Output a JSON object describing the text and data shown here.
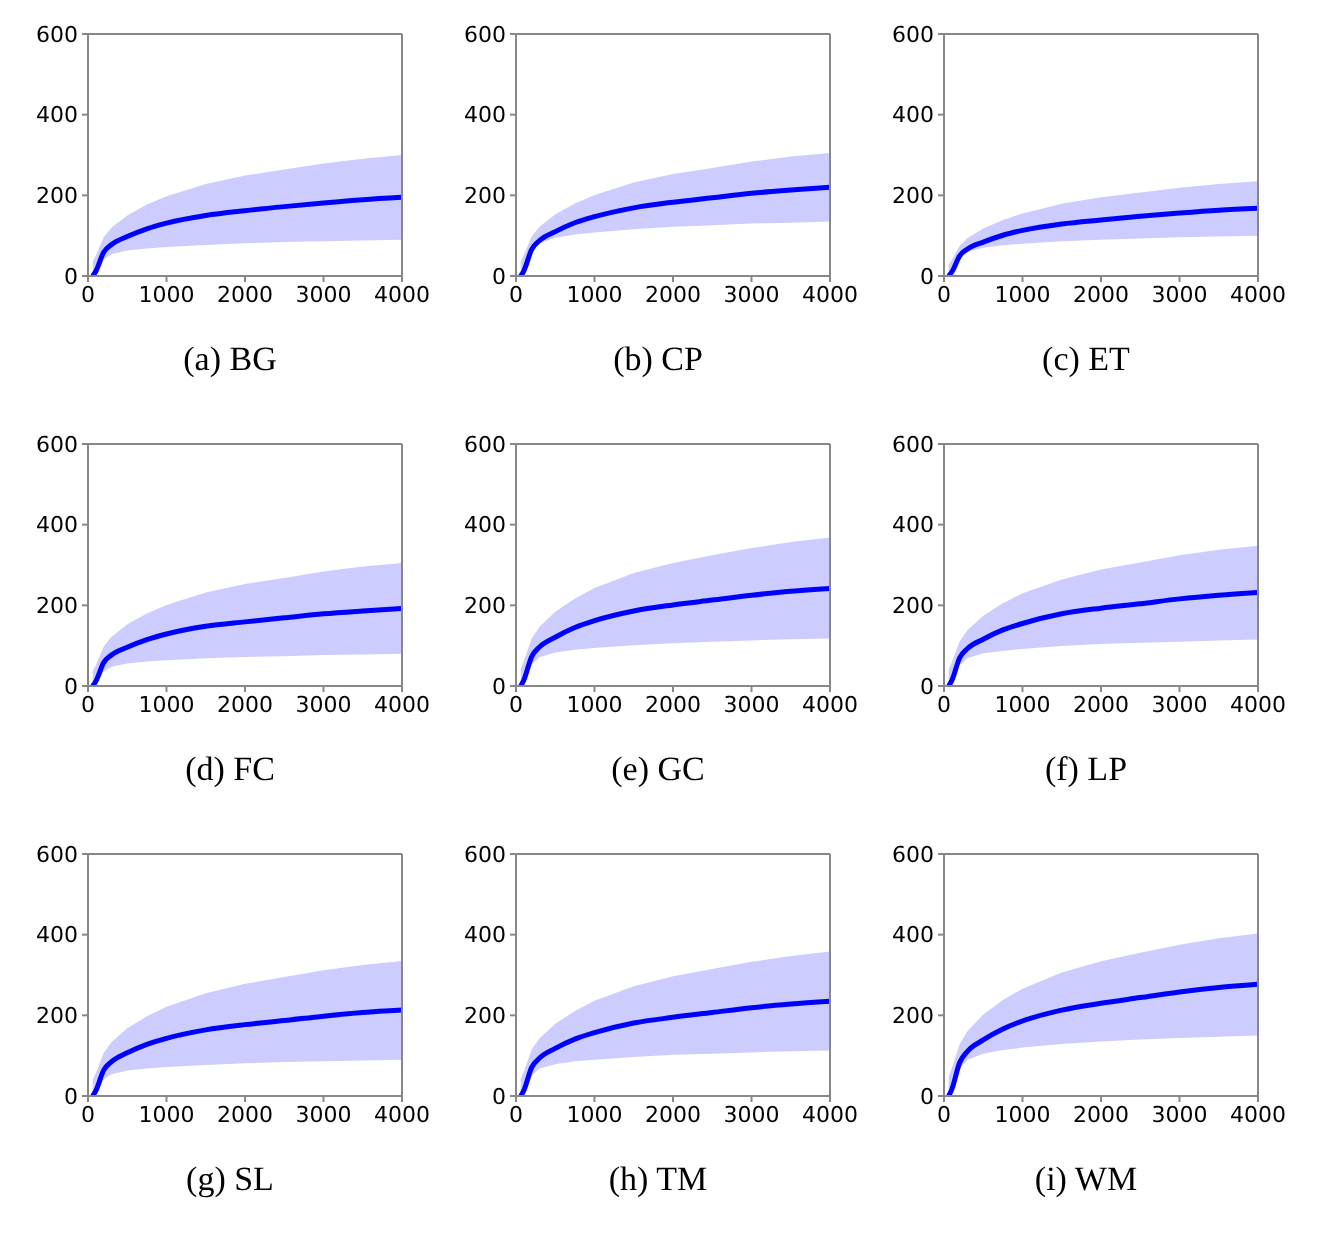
{
  "chart_data": [
    {
      "type": "line",
      "title": "(a) BG",
      "x": [
        60,
        100,
        200,
        300,
        500,
        750,
        1000,
        1500,
        2000,
        2500,
        3000,
        3500,
        4000
      ],
      "xlim": [
        0,
        4000
      ],
      "xticks": [
        0,
        1000,
        2000,
        3000,
        4000
      ],
      "ylim": [
        0,
        600
      ],
      "yticks": [
        0,
        200,
        400,
        600
      ],
      "grid": false,
      "legend": false,
      "series": [
        {
          "color": "#0000ff",
          "values": [
            0,
            12,
            59,
            78,
            98,
            117,
            131,
            150,
            162,
            172,
            181,
            189,
            195
          ],
          "upper": [
            36,
            51,
            96,
            120,
            150,
            177,
            198,
            228,
            249,
            264,
            279,
            291,
            300
          ],
          "lower": [
            0,
            9,
            41,
            54,
            63,
            68,
            72,
            77,
            81,
            84,
            86,
            88,
            90
          ]
        }
      ]
    },
    {
      "type": "line",
      "title": "(b) CP",
      "x": [
        60,
        100,
        200,
        300,
        500,
        750,
        1000,
        1500,
        2000,
        2500,
        3000,
        3500,
        4000
      ],
      "xlim": [
        0,
        4000
      ],
      "xticks": [
        0,
        1000,
        2000,
        3000,
        4000
      ],
      "ylim": [
        0,
        600
      ],
      "yticks": [
        0,
        200,
        400,
        600
      ],
      "grid": false,
      "legend": false,
      "series": [
        {
          "color": "#0000ff",
          "values": [
            0,
            13,
            66,
            88,
            110,
            132,
            147,
            169,
            183,
            194,
            205,
            213,
            220
          ],
          "upper": [
            37,
            52,
            98,
            122,
            153,
            180,
            201,
            232,
            253,
            268,
            284,
            296,
            305
          ],
          "lower": [
            0,
            14,
            61,
            81,
            95,
            103,
            108,
            116,
            122,
            126,
            130,
            132,
            135
          ]
        }
      ]
    },
    {
      "type": "line",
      "title": "(c) ET",
      "x": [
        60,
        100,
        200,
        300,
        500,
        750,
        1000,
        1500,
        2000,
        2500,
        3000,
        3500,
        4000
      ],
      "xlim": [
        0,
        4000
      ],
      "xticks": [
        0,
        1000,
        2000,
        3000,
        4000
      ],
      "ylim": [
        0,
        600
      ],
      "yticks": [
        0,
        200,
        400,
        600
      ],
      "grid": false,
      "legend": false,
      "series": [
        {
          "color": "#0000ff",
          "values": [
            0,
            10,
            50,
            67,
            84,
            101,
            113,
            129,
            139,
            148,
            156,
            163,
            168
          ],
          "upper": [
            28,
            40,
            75,
            94,
            118,
            139,
            155,
            179,
            195,
            207,
            219,
            228,
            235
          ],
          "lower": [
            0,
            10,
            45,
            60,
            70,
            76,
            80,
            86,
            90,
            93,
            96,
            98,
            100
          ]
        }
      ]
    },
    {
      "type": "line",
      "title": "(d) FC",
      "x": [
        60,
        100,
        200,
        300,
        500,
        750,
        1000,
        1500,
        2000,
        2500,
        3000,
        3500,
        4000
      ],
      "xlim": [
        0,
        4000
      ],
      "xticks": [
        0,
        1000,
        2000,
        3000,
        4000
      ],
      "ylim": [
        0,
        600
      ],
      "yticks": [
        0,
        200,
        400,
        600
      ],
      "grid": false,
      "legend": false,
      "series": [
        {
          "color": "#0000ff",
          "values": [
            0,
            12,
            58,
            77,
            96,
            115,
            129,
            148,
            159,
            169,
            179,
            186,
            192
          ],
          "upper": [
            37,
            52,
            98,
            122,
            153,
            180,
            201,
            232,
            253,
            268,
            284,
            296,
            305
          ],
          "lower": [
            0,
            8,
            36,
            48,
            56,
            61,
            64,
            69,
            72,
            74,
            77,
            78,
            80
          ]
        }
      ]
    },
    {
      "type": "line",
      "title": "(e) GC",
      "x": [
        60,
        100,
        200,
        300,
        500,
        750,
        1000,
        1500,
        2000,
        2500,
        3000,
        3500,
        4000
      ],
      "xlim": [
        0,
        4000
      ],
      "xticks": [
        0,
        1000,
        2000,
        3000,
        4000
      ],
      "ylim": [
        0,
        600
      ],
      "yticks": [
        0,
        200,
        400,
        600
      ],
      "grid": false,
      "legend": false,
      "series": [
        {
          "color": "#0000ff",
          "values": [
            0,
            15,
            73,
            97,
            121,
            145,
            162,
            186,
            201,
            213,
            225,
            235,
            242
          ],
          "upper": [
            44,
            63,
            118,
            147,
            184,
            217,
            243,
            280,
            305,
            324,
            342,
            357,
            368
          ],
          "lower": [
            0,
            12,
            53,
            71,
            83,
            90,
            94,
            101,
            106,
            110,
            113,
            116,
            118
          ]
        }
      ]
    },
    {
      "type": "line",
      "title": "(f) LP",
      "x": [
        60,
        100,
        200,
        300,
        500,
        750,
        1000,
        1500,
        2000,
        2500,
        3000,
        3500,
        4000
      ],
      "xlim": [
        0,
        4000
      ],
      "xticks": [
        0,
        1000,
        2000,
        3000,
        4000
      ],
      "ylim": [
        0,
        600
      ],
      "yticks": [
        0,
        200,
        400,
        600
      ],
      "grid": false,
      "legend": false,
      "series": [
        {
          "color": "#0000ff",
          "values": [
            0,
            14,
            70,
            93,
            116,
            139,
            155,
            179,
            193,
            204,
            216,
            225,
            232
          ],
          "upper": [
            42,
            59,
            111,
            139,
            174,
            205,
            230,
            264,
            289,
            306,
            324,
            338,
            348
          ],
          "lower": [
            0,
            12,
            52,
            69,
            81,
            87,
            92,
            99,
            104,
            107,
            110,
            113,
            115
          ]
        }
      ]
    },
    {
      "type": "line",
      "title": "(g) SL",
      "x": [
        60,
        100,
        200,
        300,
        500,
        750,
        1000,
        1500,
        2000,
        2500,
        3000,
        3500,
        4000
      ],
      "xlim": [
        0,
        4000
      ],
      "xticks": [
        0,
        1000,
        2000,
        3000,
        4000
      ],
      "ylim": [
        0,
        600
      ],
      "yticks": [
        0,
        200,
        400,
        600
      ],
      "grid": false,
      "legend": false,
      "series": [
        {
          "color": "#0000ff",
          "values": [
            0,
            13,
            64,
            85,
            107,
            128,
            143,
            164,
            177,
            187,
            198,
            207,
            213
          ],
          "upper": [
            40,
            57,
            107,
            134,
            168,
            198,
            221,
            255,
            278,
            295,
            312,
            325,
            335
          ],
          "lower": [
            0,
            9,
            41,
            54,
            63,
            68,
            72,
            77,
            81,
            84,
            86,
            88,
            90
          ]
        }
      ]
    },
    {
      "type": "line",
      "title": "(h) TM",
      "x": [
        60,
        100,
        200,
        300,
        500,
        750,
        1000,
        1500,
        2000,
        2500,
        3000,
        3500,
        4000
      ],
      "xlim": [
        0,
        4000
      ],
      "xticks": [
        0,
        1000,
        2000,
        3000,
        4000
      ],
      "ylim": [
        0,
        600
      ],
      "yticks": [
        0,
        200,
        400,
        600
      ],
      "grid": false,
      "legend": false,
      "series": [
        {
          "color": "#0000ff",
          "values": [
            0,
            14,
            71,
            94,
            118,
            141,
            157,
            181,
            195,
            207,
            219,
            228,
            235
          ],
          "upper": [
            43,
            61,
            115,
            143,
            179,
            211,
            236,
            272,
            297,
            315,
            333,
            347,
            358
          ],
          "lower": [
            0,
            11,
            51,
            68,
            79,
            86,
            90,
            97,
            102,
            105,
            108,
            111,
            113
          ]
        }
      ]
    },
    {
      "type": "line",
      "title": "(i) WM",
      "x": [
        60,
        100,
        200,
        300,
        500,
        750,
        1000,
        1500,
        2000,
        2500,
        3000,
        3500,
        4000
      ],
      "xlim": [
        0,
        4000
      ],
      "xticks": [
        0,
        1000,
        2000,
        3000,
        4000
      ],
      "ylim": [
        0,
        600
      ],
      "yticks": [
        0,
        200,
        400,
        600
      ],
      "grid": false,
      "legend": false,
      "series": [
        {
          "color": "#0000ff",
          "values": [
            0,
            17,
            83,
            111,
            139,
            166,
            186,
            213,
            230,
            244,
            258,
            269,
            277
          ],
          "upper": [
            48,
            69,
            129,
            161,
            202,
            238,
            266,
            306,
            334,
            355,
            375,
            391,
            403
          ],
          "lower": [
            0,
            15,
            68,
            90,
            105,
            114,
            120,
            129,
            135,
            140,
            144,
            147,
            150
          ]
        }
      ]
    }
  ]
}
